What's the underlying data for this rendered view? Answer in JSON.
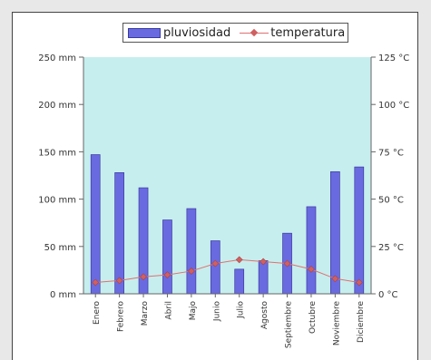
{
  "chart_data": {
    "type": "bar",
    "categories": [
      "Enero",
      "Febrero",
      "Marzo",
      "Abril",
      "Majo",
      "Junio",
      "Julio",
      "Agosto",
      "Septiembre",
      "Octubre",
      "Noviembre",
      "Diciembre"
    ],
    "series": [
      {
        "name": "pluviosidad",
        "type": "bar",
        "axis": "left",
        "values": [
          147,
          128,
          112,
          78,
          90,
          56,
          26,
          35,
          64,
          92,
          129,
          134
        ]
      },
      {
        "name": "temperatura",
        "type": "line",
        "axis": "right",
        "values": [
          6,
          7,
          9,
          10,
          12,
          16,
          18,
          17,
          16,
          13,
          8,
          6
        ]
      }
    ],
    "y_left": {
      "ylim": [
        0,
        250
      ],
      "ticks": [
        "0 mm",
        "50 mm",
        "100 mm",
        "150 mm",
        "200 mm",
        "250 mm"
      ]
    },
    "y_right": {
      "ylim": [
        0,
        125
      ],
      "ticks": [
        "0 °C",
        "25 °C",
        "50 °C",
        "75 °C",
        "100 °C",
        "125 °C"
      ]
    },
    "legend_position": "top-right",
    "colors": {
      "plot_bg": "#c7eeee",
      "bar": "#6a6ae0",
      "bar_edge": "#3a3aa0",
      "line": "#e07070",
      "marker": "#d06060"
    }
  },
  "legend": {
    "bar_label": "pluviosidad",
    "line_label": "temperatura"
  }
}
